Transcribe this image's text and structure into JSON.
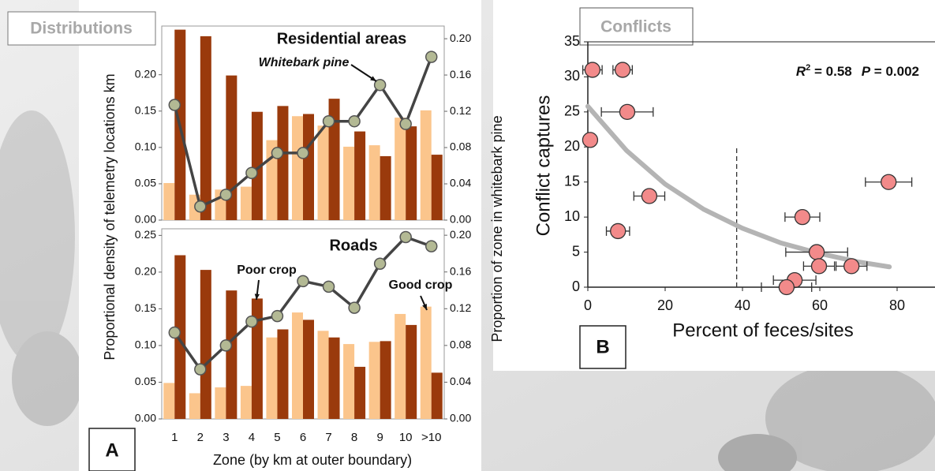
{
  "tabs": {
    "distributions": "Distributions",
    "conflicts": "Conflicts"
  },
  "panel_labels": {
    "a": "A",
    "b": "B"
  },
  "chart_data": [
    {
      "type": "bar",
      "title": "Residential areas",
      "annotations": [
        "Whitebark pine"
      ],
      "ylabel": "Proportional density of telemetry locations km",
      "y2label": "Proportion of zone in whitebark pine",
      "categories": [
        null,
        null,
        null,
        null,
        null,
        null,
        null,
        null,
        null,
        null,
        null
      ],
      "series": [
        {
          "color": "#fbc58c",
          "values": [
            0.051,
            0.035,
            0.042,
            0.046,
            0.11,
            0.143,
            0.13,
            0.101,
            0.103,
            0.141,
            0.151
          ]
        },
        {
          "color": "#9a3a0c",
          "values": [
            0.262,
            0.253,
            0.199,
            0.149,
            0.157,
            0.146,
            0.167,
            0.122,
            0.088,
            0.129,
            0.09
          ]
        },
        {
          "color": "#444444",
          "marker_color": "#b3b994",
          "axis": "y2",
          "values": [
            0.127,
            0.015,
            0.028,
            0.052,
            0.074,
            0.074,
            0.109,
            0.109,
            0.149,
            0.106,
            0.18
          ]
        }
      ],
      "ylim": [
        0,
        0.267
      ],
      "yticks": [
        {
          "value": 0,
          "label": "0.00"
        },
        {
          "value": 0.05,
          "label": "0.05"
        },
        {
          "value": 0.1,
          "label": "0.10"
        },
        {
          "value": 0.15,
          "label": "0.15"
        },
        {
          "value": 0.2,
          "label": "0.20"
        }
      ],
      "y2lim": [
        0,
        0.214
      ],
      "y2ticks": [
        {
          "value": 0,
          "label": "0.00"
        },
        0.04,
        0.08,
        0.12,
        0.16,
        {
          "value": 0.2,
          "label": "0.20"
        }
      ]
    },
    {
      "type": "bar",
      "title": "Roads",
      "annotations": [
        "Poor crop",
        "Good crop"
      ],
      "xlabel": "Zone (by km at outer boundary)",
      "categories": [
        "1",
        "2",
        "3",
        "4",
        "5",
        "6",
        "7",
        "8",
        "9",
        "10",
        ">10"
      ],
      "series": [
        {
          "color": "#fbc58c",
          "values": [
            0.049,
            0.035,
            0.043,
            0.045,
            0.111,
            0.145,
            0.12,
            0.102,
            0.105,
            0.143,
            0.153
          ]
        },
        {
          "color": "#9a3a0c",
          "values": [
            0.223,
            0.203,
            0.175,
            0.164,
            0.122,
            0.135,
            0.111,
            0.071,
            0.106,
            0.128,
            0.063
          ]
        },
        {
          "color": "#444444",
          "marker_color": "#b3b994",
          "axis": "y2",
          "values": [
            0.094,
            0.054,
            0.08,
            0.106,
            0.112,
            0.15,
            0.144,
            0.121,
            0.169,
            0.198,
            0.188
          ]
        }
      ],
      "ylim": [
        0,
        0.259
      ],
      "yticks": [
        {
          "value": 0,
          "label": "0.00"
        },
        {
          "value": 0.05,
          "label": "0.05"
        },
        {
          "value": 0.1,
          "label": "0.10"
        },
        {
          "value": 0.15,
          "label": "0.15"
        },
        {
          "value": 0.2,
          "label": "0.20"
        },
        {
          "value": 0.25,
          "label": "0.25"
        }
      ],
      "y2lim": [
        0,
        0.207
      ],
      "y2ticks": [
        {
          "value": 0,
          "label": "0.00"
        },
        0.04,
        0.08,
        0.12,
        0.16,
        {
          "value": 0.2,
          "label": "0.20"
        }
      ]
    },
    {
      "type": "scatter",
      "xlabel": "Percent of feces/sites",
      "ylabel": "Conflict captures",
      "stats": {
        "r_label": "R",
        "r_sup": "2",
        "r_value": " = 0.58",
        "p_label": "P",
        "p_value": " = 0.002"
      },
      "color": "#f28a8a",
      "x": [
        1.2,
        9,
        10.2,
        0.6,
        15.9,
        7.8,
        77.8,
        55.5,
        59.2,
        59.8,
        68.2,
        53.5,
        51.4
      ],
      "y": [
        31,
        31,
        25,
        21,
        13,
        8,
        15,
        10,
        5,
        3,
        3,
        1,
        0
      ],
      "x_err": [
        2.5,
        2.5,
        6.7,
        null,
        4,
        3,
        6,
        4.5,
        8,
        4,
        4,
        5.5,
        6.5
      ],
      "fit": {
        "color": "#b4b4b4",
        "x": [
          0,
          10,
          20,
          30,
          40,
          50,
          60,
          70,
          78
        ],
        "y": [
          25.8,
          19.5,
          14.7,
          11.1,
          8.4,
          6.3,
          4.8,
          3.6,
          2.9
        ]
      },
      "threshold_x": 38.5,
      "xlim": [
        0,
        89.8
      ],
      "xticks": [
        0,
        20,
        40,
        60,
        80
      ],
      "ylim": [
        0,
        35
      ],
      "yticks": [
        0,
        5,
        10,
        15,
        20,
        25,
        30,
        35
      ]
    }
  ]
}
